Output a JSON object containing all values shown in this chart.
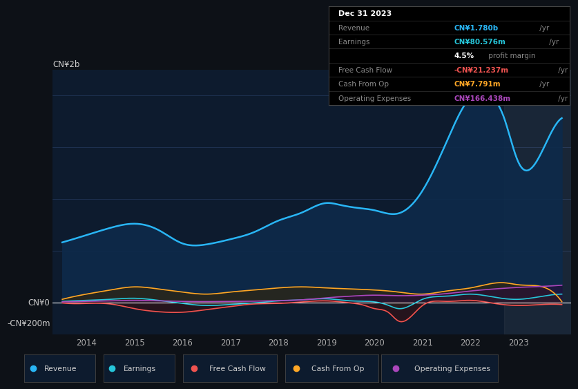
{
  "bg_color": "#0d1117",
  "plot_bg_color": "#0d1b2e",
  "grid_color": "#253a5e",
  "revenue_x": [
    2013.5,
    2014.0,
    2014.5,
    2015.0,
    2015.5,
    2016.0,
    2016.5,
    2017.0,
    2017.5,
    2018.0,
    2018.5,
    2019.0,
    2019.3,
    2019.7,
    2020.0,
    2020.5,
    2021.0,
    2021.5,
    2022.0,
    2022.3,
    2022.7,
    2023.0,
    2023.5,
    2023.9
  ],
  "revenue_y": [
    580,
    650,
    720,
    760,
    700,
    570,
    560,
    610,
    680,
    790,
    870,
    960,
    940,
    910,
    890,
    860,
    1080,
    1550,
    1980,
    2020,
    1780,
    1350,
    1470,
    1780
  ],
  "earnings_x": [
    2013.5,
    2014.0,
    2014.5,
    2015.0,
    2015.5,
    2016.0,
    2016.5,
    2017.0,
    2017.5,
    2018.0,
    2018.5,
    2019.0,
    2019.5,
    2020.0,
    2020.3,
    2020.5,
    2021.0,
    2021.5,
    2022.0,
    2022.5,
    2023.0,
    2023.5,
    2023.9
  ],
  "earnings_y": [
    10,
    20,
    30,
    40,
    20,
    -10,
    -30,
    -20,
    -5,
    15,
    25,
    35,
    15,
    5,
    -30,
    -60,
    30,
    60,
    80,
    50,
    30,
    60,
    80
  ],
  "fcf_x": [
    2013.5,
    2014.0,
    2014.5,
    2015.0,
    2015.5,
    2016.0,
    2016.5,
    2017.0,
    2017.5,
    2018.0,
    2018.5,
    2019.0,
    2019.5,
    2019.8,
    2020.0,
    2020.3,
    2020.5,
    2021.0,
    2021.5,
    2022.0,
    2022.5,
    2023.0,
    2023.5,
    2023.9
  ],
  "fcf_y": [
    -5,
    -10,
    -15,
    -60,
    -90,
    -95,
    -70,
    -40,
    -15,
    -10,
    5,
    15,
    -5,
    -30,
    -60,
    -100,
    -180,
    -30,
    10,
    20,
    -10,
    -30,
    -20,
    -21
  ],
  "cfop_x": [
    2013.5,
    2014.0,
    2014.5,
    2015.0,
    2015.5,
    2016.0,
    2016.5,
    2017.0,
    2017.5,
    2018.0,
    2018.5,
    2019.0,
    2019.5,
    2020.0,
    2020.5,
    2021.0,
    2021.5,
    2022.0,
    2022.3,
    2022.7,
    2023.0,
    2023.5,
    2023.9
  ],
  "cfop_y": [
    30,
    80,
    120,
    150,
    130,
    100,
    80,
    100,
    120,
    140,
    150,
    140,
    130,
    120,
    100,
    80,
    110,
    140,
    170,
    190,
    170,
    150,
    8
  ],
  "opex_x": [
    2013.5,
    2014.0,
    2014.5,
    2015.0,
    2015.5,
    2016.0,
    2016.5,
    2017.0,
    2017.5,
    2018.0,
    2018.5,
    2019.0,
    2019.5,
    2020.0,
    2020.5,
    2021.0,
    2021.5,
    2022.0,
    2022.5,
    2023.0,
    2023.5,
    2023.9
  ],
  "opex_y": [
    5,
    10,
    15,
    20,
    15,
    10,
    8,
    10,
    12,
    18,
    25,
    45,
    60,
    70,
    65,
    70,
    85,
    110,
    130,
    145,
    155,
    166
  ],
  "revenue_color": "#29b6f6",
  "earnings_color": "#26c6da",
  "fcf_color": "#ef5350",
  "cfop_color": "#ffa726",
  "opex_color": "#ab47bc",
  "revenue_fill": "#0d2a4a",
  "earnings_fill": "#1a3a3a",
  "fcf_fill": "#3a1010",
  "cfop_fill": "#3a2500",
  "opex_fill": "#2a0a3a",
  "info_box": {
    "date": "Dec 31 2023",
    "rows": [
      {
        "label": "Revenue",
        "val": "CN¥1.780b",
        "val_color": "#29b6f6",
        "suffix": " /yr"
      },
      {
        "label": "Earnings",
        "val": "CN¥80.576m",
        "val_color": "#26c6da",
        "suffix": " /yr"
      },
      {
        "label": "",
        "val": "4.5%",
        "val_color": "#ffffff",
        "suffix": " profit margin",
        "suffix_color": "#888888"
      },
      {
        "label": "Free Cash Flow",
        "val": "-CN¥21.237m",
        "val_color": "#ef5350",
        "suffix": " /yr"
      },
      {
        "label": "Cash From Op",
        "val": "CN¥7.791m",
        "val_color": "#ffa726",
        "suffix": " /yr"
      },
      {
        "label": "Operating Expenses",
        "val": "CN¥166.438m",
        "val_color": "#ab47bc",
        "suffix": " /yr"
      }
    ]
  },
  "ylabel_top": "CN¥2b",
  "ylabel_zero": "CN¥0",
  "ylabel_neg": "-CN¥200m",
  "xlim": [
    2013.3,
    2024.1
  ],
  "ylim": [
    -310,
    2250
  ],
  "xticks": [
    2014,
    2015,
    2016,
    2017,
    2018,
    2019,
    2020,
    2021,
    2022,
    2023
  ],
  "xtick_labels": [
    "2014",
    "2015",
    "2016",
    "2017",
    "2018",
    "2019",
    "2020",
    "2021",
    "2022",
    "2023"
  ],
  "gridlines_y": [
    0,
    500,
    1000,
    1500,
    2000
  ],
  "legend": [
    {
      "label": "Revenue",
      "color": "#29b6f6"
    },
    {
      "label": "Earnings",
      "color": "#26c6da"
    },
    {
      "label": "Free Cash Flow",
      "color": "#ef5350"
    },
    {
      "label": "Cash From Op",
      "color": "#ffa726"
    },
    {
      "label": "Operating Expenses",
      "color": "#ab47bc"
    }
  ]
}
